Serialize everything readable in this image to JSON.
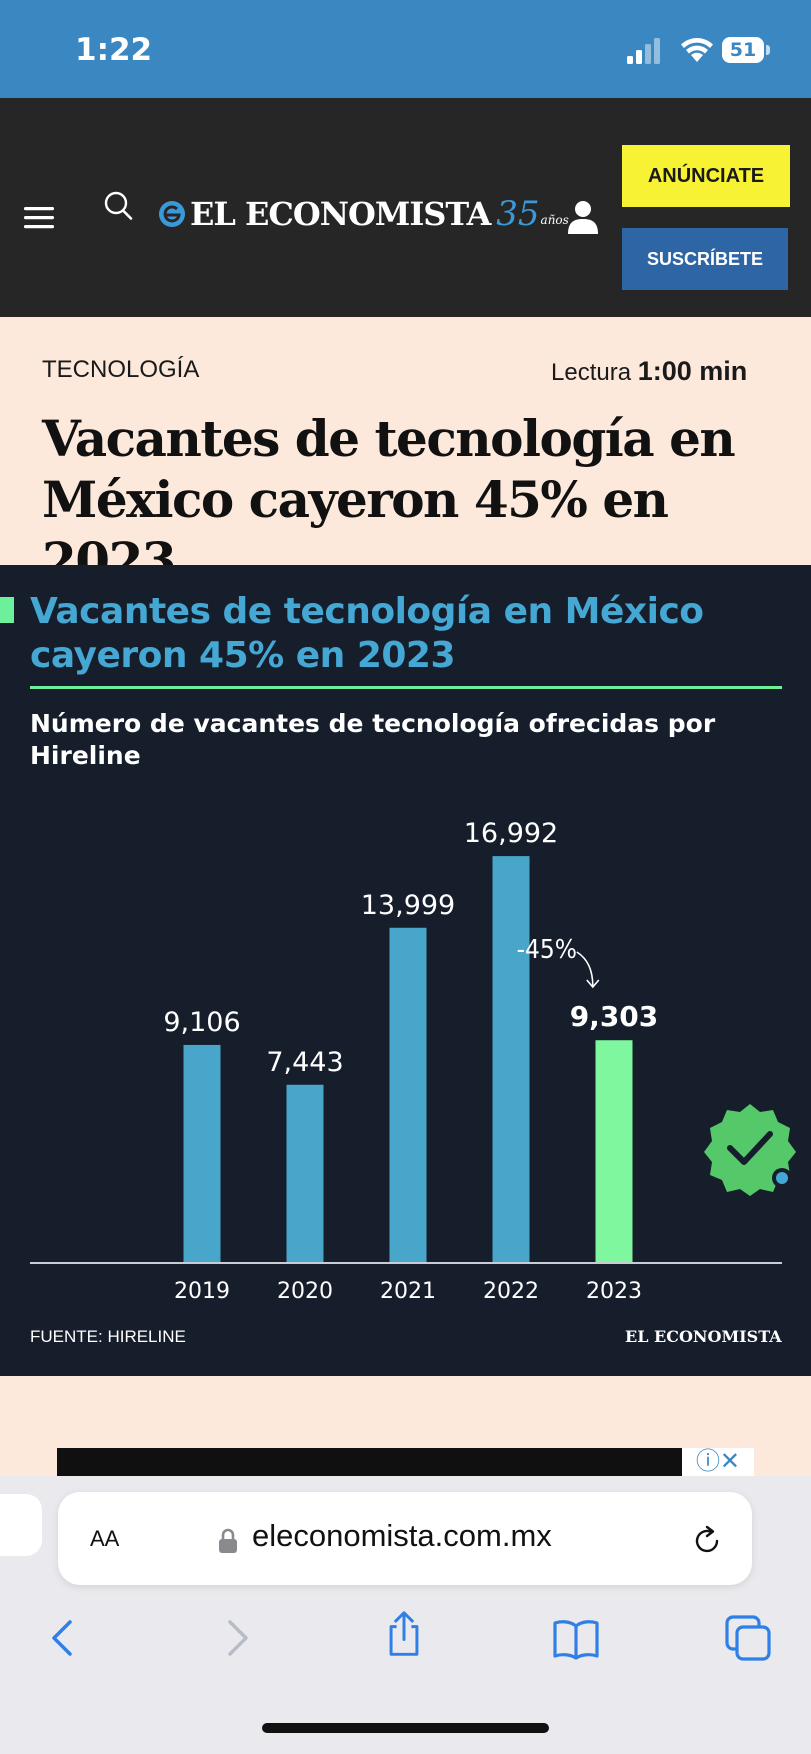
{
  "status_bar": {
    "time": "1:22",
    "battery": "51"
  },
  "header": {
    "logo_text": "EL ECONOMISTA",
    "logo_35": "35",
    "logo_anos": "años",
    "anunciate_label": "ANÚNCIATE",
    "suscribete_label": "SUSCRÍBETE",
    "colors": {
      "bg": "#262626",
      "anunciate": "#f7f334",
      "suscribete": "#2e66a5"
    }
  },
  "article": {
    "section": "TECNOLOGÍA",
    "reading_label": "Lectura",
    "reading_time": "1:00 min",
    "headline": "Vacantes de tecnología en México cayeron 45% en 2023"
  },
  "infographic": {
    "title": "Vacantes de tecnología en México cayeron 45% en 2023",
    "subtitle": "Número de vacantes de tecnología ofrecidas por Hireline",
    "source": "FUENTE: HIRELINE",
    "logo": "EL ECONOMISTA",
    "annotation": "-45%",
    "colors": {
      "bg": "#161e2c",
      "bar": "#48a6ca",
      "highlight": "#7ef79e",
      "title": "#45a7d3"
    }
  },
  "chart_data": {
    "type": "bar",
    "title": "Vacantes de tecnología en México cayeron 45% en 2023",
    "subtitle": "Número de vacantes de tecnología ofrecidas por Hireline",
    "categories": [
      "2019",
      "2020",
      "2021",
      "2022",
      "2023"
    ],
    "values": [
      9106,
      7443,
      13999,
      16992,
      9303
    ],
    "value_labels": [
      "9,106",
      "7,443",
      "13,999",
      "16,992",
      "9,303"
    ],
    "highlight_index": 4,
    "ylim": [
      0,
      18500
    ],
    "grid": false,
    "annotation": "-45%"
  },
  "browser": {
    "aa_label": "AA",
    "url": "eleconomista.com.mx"
  }
}
